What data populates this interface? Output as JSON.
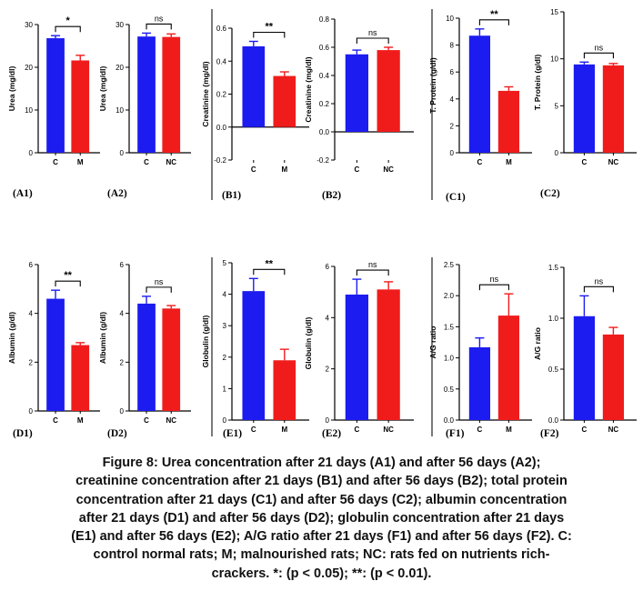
{
  "colors": {
    "control": "#1c1cf0",
    "treatment": "#f01c1c",
    "axis": "#000000",
    "divider": "#222222"
  },
  "chart_data": [
    {
      "id": "A1",
      "panel_label": "(A1)",
      "type": "bar",
      "categories": [
        "C",
        "M"
      ],
      "values": [
        26.8,
        21.6
      ],
      "errors": [
        0.6,
        1.2
      ],
      "ylabel": "Urea (mg/dl)",
      "ylim": [
        0,
        30
      ],
      "yticks": [
        "0",
        "10",
        "20",
        "30"
      ],
      "yticks_values": [
        0,
        10,
        20,
        30
      ],
      "significance": "*"
    },
    {
      "id": "A2",
      "panel_label": "(A2)",
      "type": "bar",
      "categories": [
        "C",
        "NC"
      ],
      "values": [
        27.2,
        27.1
      ],
      "errors": [
        0.8,
        0.7
      ],
      "ylabel": "Urea (mg/dl)",
      "ylim": [
        0,
        30
      ],
      "yticks": [
        "0",
        "10",
        "20",
        "30"
      ],
      "yticks_values": [
        0,
        10,
        20,
        30
      ],
      "significance": "ns"
    },
    {
      "id": "B1",
      "panel_label": "(B1)",
      "type": "bar",
      "categories": [
        "C",
        "M"
      ],
      "values": [
        0.49,
        0.31
      ],
      "errors": [
        0.03,
        0.025
      ],
      "ylabel": "Creatinine (mg/dl)",
      "ylim": [
        -0.2,
        0.6
      ],
      "yticks": [
        "-0.2",
        "0.0",
        "0.2",
        "0.4",
        "0.6"
      ],
      "yticks_values": [
        -0.2,
        0,
        0.2,
        0.4,
        0.6
      ],
      "significance": "**"
    },
    {
      "id": "B2",
      "panel_label": "(B2)",
      "type": "bar",
      "categories": [
        "C",
        "NC"
      ],
      "values": [
        0.55,
        0.58
      ],
      "errors": [
        0.03,
        0.02
      ],
      "ylabel": "Creatinine (mg/dl)",
      "ylim": [
        -0.2,
        0.8
      ],
      "yticks": [
        "-0.2",
        "0.0",
        "0.2",
        "0.4",
        "0.6",
        "0.8"
      ],
      "yticks_values": [
        -0.2,
        0,
        0.2,
        0.4,
        0.6,
        0.8
      ],
      "significance": "ns"
    },
    {
      "id": "C1",
      "panel_label": "(C1)",
      "type": "bar",
      "categories": [
        "C",
        "M"
      ],
      "values": [
        8.7,
        4.6
      ],
      "errors": [
        0.5,
        0.3
      ],
      "ylabel": "T. Protein (g/dl)",
      "ylim": [
        0,
        10
      ],
      "yticks": [
        "0",
        "2",
        "4",
        "6",
        "8",
        "10"
      ],
      "yticks_values": [
        0,
        2,
        4,
        6,
        8,
        10
      ],
      "significance": "**"
    },
    {
      "id": "C2",
      "panel_label": "(C2)",
      "type": "bar",
      "categories": [
        "C",
        "NC"
      ],
      "values": [
        9.4,
        9.3
      ],
      "errors": [
        0.25,
        0.2
      ],
      "ylabel": "T. Protein (g/dl)",
      "ylim": [
        0,
        15
      ],
      "yticks": [
        "0",
        "5",
        "10",
        "15"
      ],
      "yticks_values": [
        0,
        5,
        10,
        15
      ],
      "significance": "ns"
    },
    {
      "id": "D1",
      "panel_label": "(D1)",
      "type": "bar",
      "categories": [
        "C",
        "M"
      ],
      "values": [
        4.6,
        2.7
      ],
      "errors": [
        0.35,
        0.1
      ],
      "ylabel": "Albumin (g/dl)",
      "ylim": [
        0,
        6
      ],
      "yticks": [
        "0",
        "2",
        "4",
        "6"
      ],
      "yticks_values": [
        0,
        2,
        4,
        6
      ],
      "significance": "**"
    },
    {
      "id": "D2",
      "panel_label": "(D2)",
      "type": "bar",
      "categories": [
        "C",
        "NC"
      ],
      "values": [
        4.4,
        4.2
      ],
      "errors": [
        0.3,
        0.12
      ],
      "ylabel": "Albumin (g/dl)",
      "ylim": [
        0,
        6
      ],
      "yticks": [
        "0",
        "2",
        "4",
        "6"
      ],
      "yticks_values": [
        0,
        2,
        4,
        6
      ],
      "significance": "ns"
    },
    {
      "id": "E1",
      "panel_label": "(E1)",
      "type": "bar",
      "categories": [
        "C",
        "M"
      ],
      "values": [
        4.1,
        1.9
      ],
      "errors": [
        0.4,
        0.35
      ],
      "ylabel": "Globulin (g/dl)",
      "ylim": [
        0,
        5
      ],
      "yticks": [
        "0",
        "1",
        "2",
        "3",
        "4",
        "5"
      ],
      "yticks_values": [
        0,
        1,
        2,
        3,
        4,
        5
      ],
      "significance": "**"
    },
    {
      "id": "E2",
      "panel_label": "(E2)",
      "type": "bar",
      "categories": [
        "C",
        "NC"
      ],
      "values": [
        4.9,
        5.1
      ],
      "errors": [
        0.6,
        0.3
      ],
      "ylabel": "Globulin (g/dl)",
      "ylim": [
        0,
        6
      ],
      "yticks": [
        "0",
        "2",
        "4",
        "6"
      ],
      "yticks_values": [
        0,
        2,
        4,
        6
      ],
      "significance": "ns"
    },
    {
      "id": "F1",
      "panel_label": "(F1)",
      "type": "bar",
      "categories": [
        "C",
        "M"
      ],
      "values": [
        1.17,
        1.68
      ],
      "errors": [
        0.15,
        0.35
      ],
      "ylabel": "A/G ratio",
      "ylim": [
        0.0,
        2.5
      ],
      "yticks": [
        "0.0",
        "0.5",
        "1.0",
        "1.5",
        "2.0",
        "2.5"
      ],
      "yticks_values": [
        0,
        0.5,
        1,
        1.5,
        2,
        2.5
      ],
      "significance": "ns"
    },
    {
      "id": "F2",
      "panel_label": "(F2)",
      "type": "bar",
      "categories": [
        "C",
        "NC"
      ],
      "values": [
        1.02,
        0.84
      ],
      "errors": [
        0.2,
        0.07
      ],
      "ylabel": "A/G ratio",
      "ylim": [
        0.0,
        1.5
      ],
      "yticks": [
        "0.0",
        "0.5",
        "1.0",
        "1.5"
      ],
      "yticks_values": [
        0,
        0.5,
        1,
        1.5
      ],
      "significance": "ns"
    }
  ],
  "caption": {
    "lines": [
      "Figure 8: Urea concentration after 21 days (A1) and after 56 days (A2);",
      "creatinine concentration after 21 days (B1) and after 56 days (B2); total protein",
      "concentration after 21 days (C1) and after 56 days (C2); albumin concentration",
      "after 21 days (D1) and after 56 days (D2); globulin concentration after 21 days",
      "(E1) and after 56 days (E2); A/G ratio after 21 days (F1) and after 56 days (F2). C:",
      "control normal rats; M; malnourished rats; NC: rats fed on nutrients rich-",
      "crackers. *: (p < 0.05); **: (p < 0.01)."
    ]
  }
}
